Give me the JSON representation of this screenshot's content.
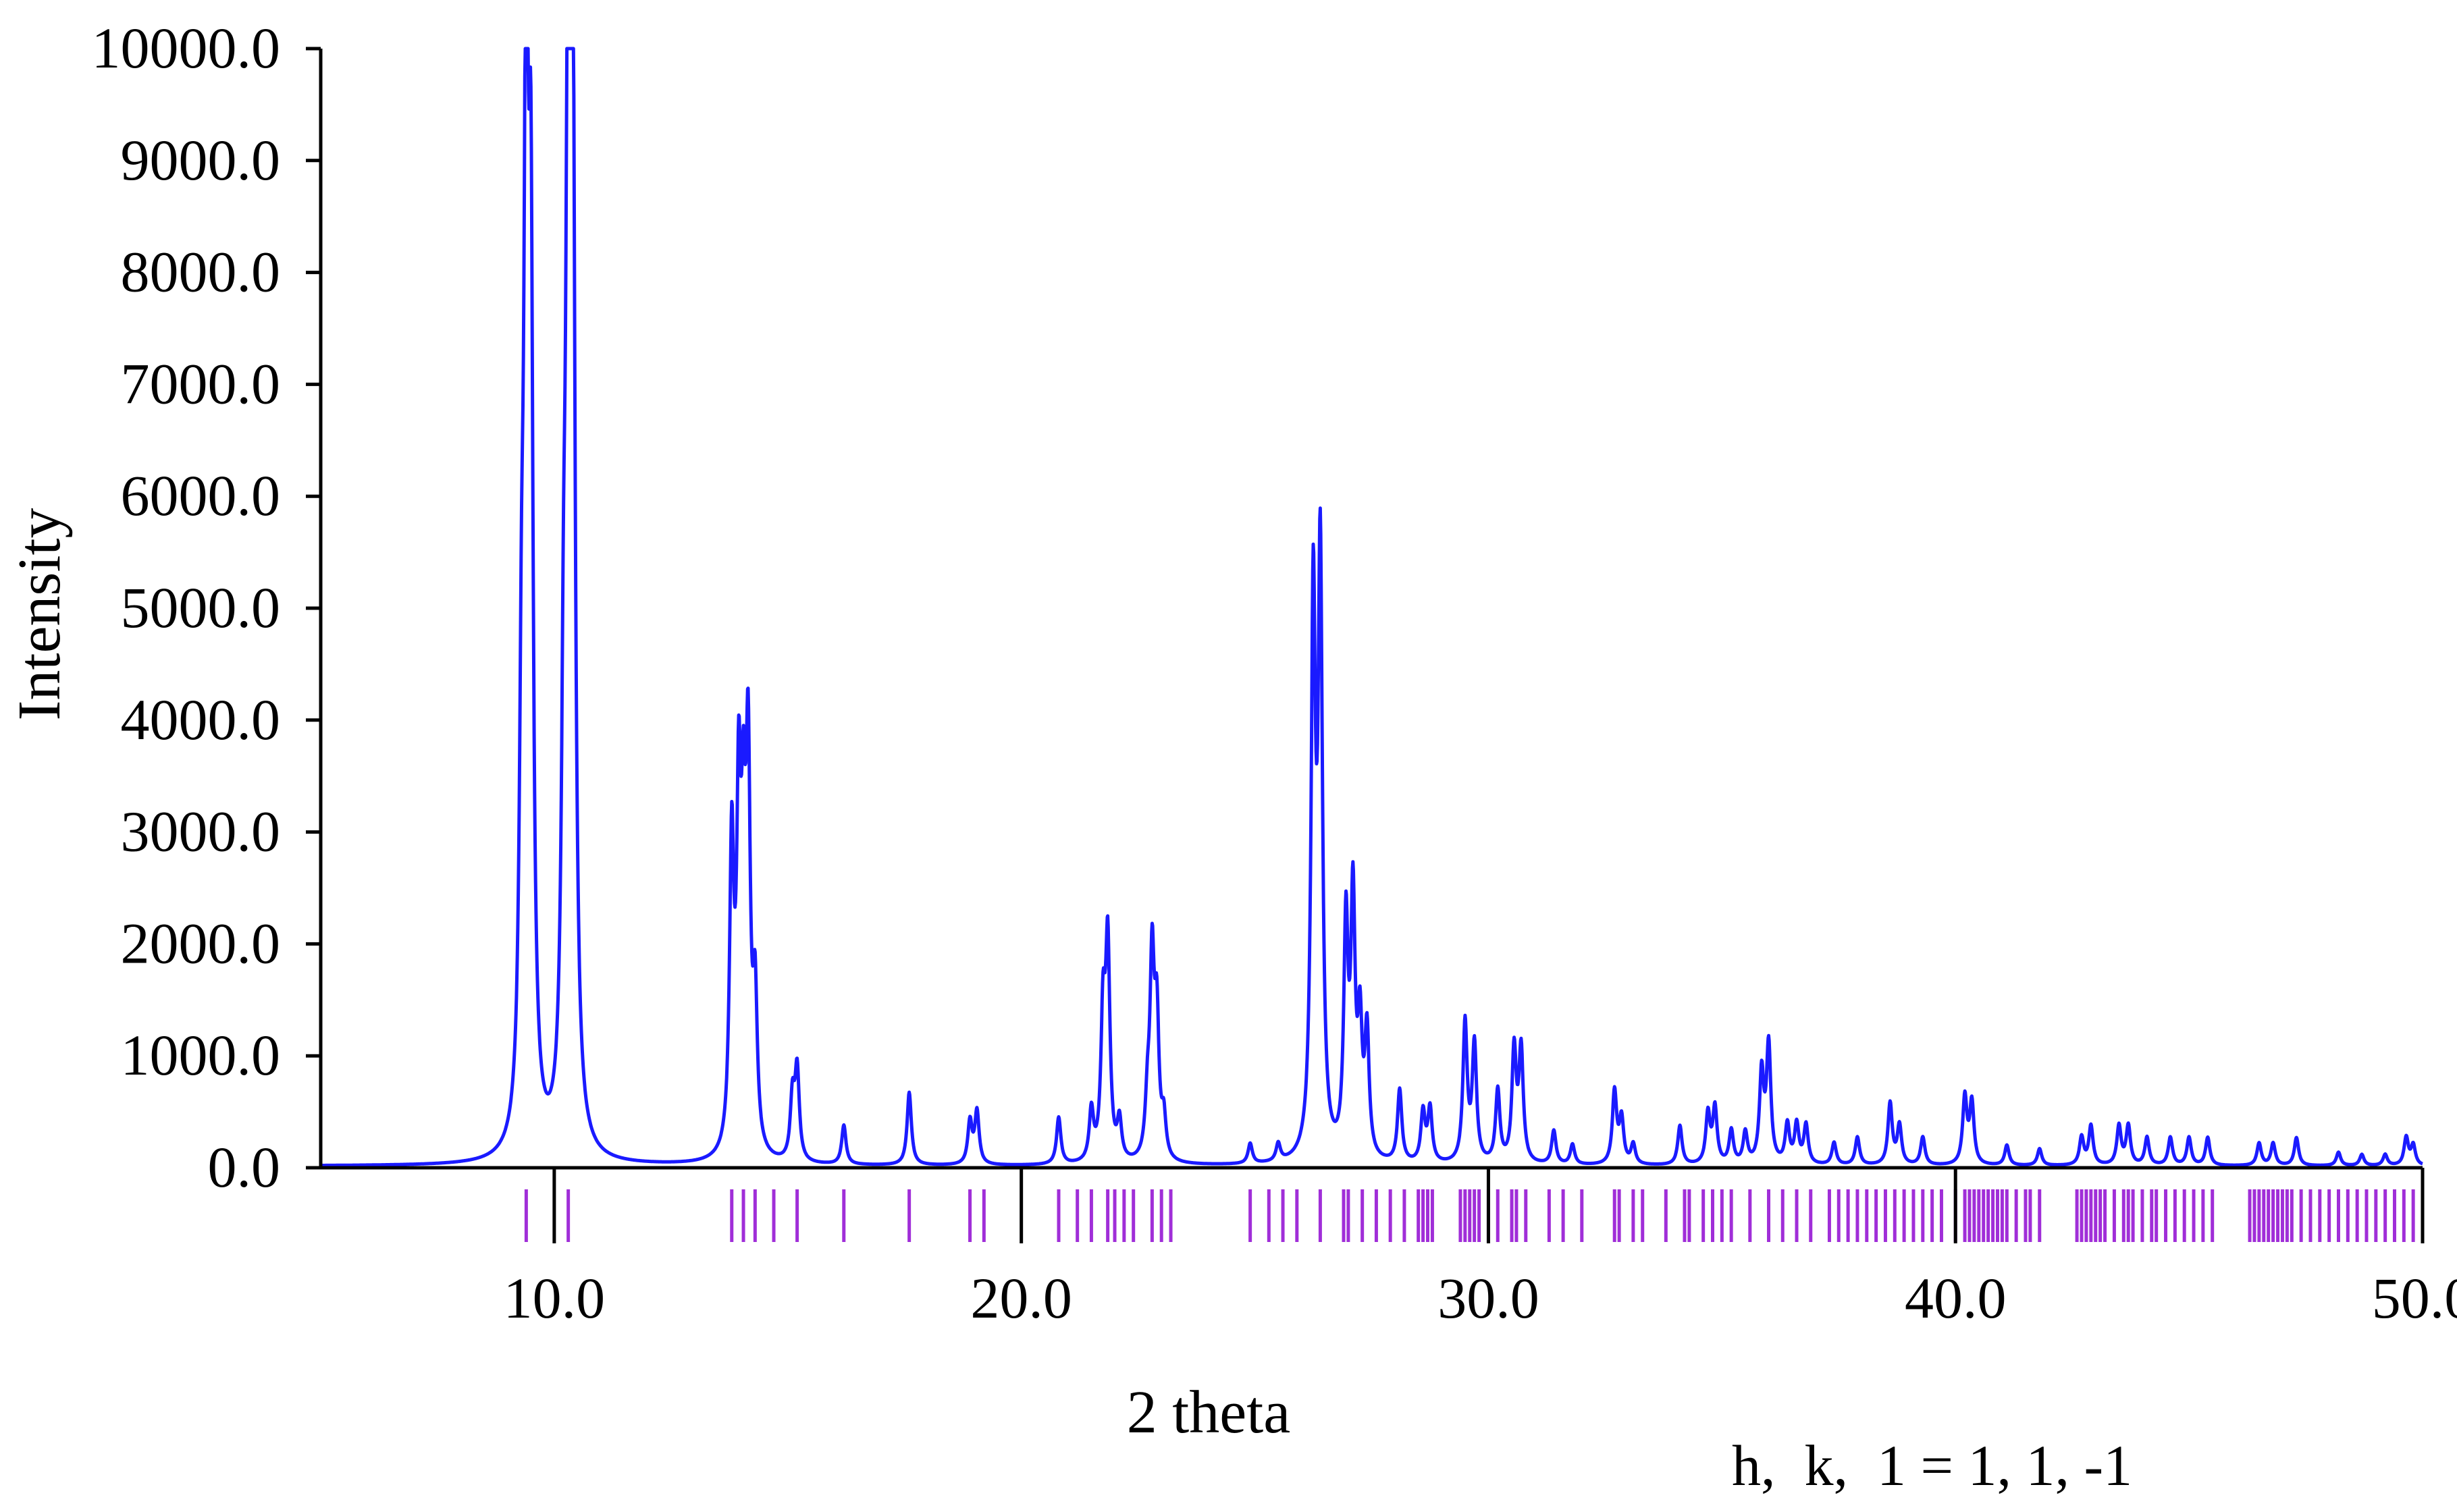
{
  "chart_data": {
    "type": "line",
    "title": "",
    "xlabel": "2 theta",
    "ylabel": "Intensity",
    "xlim": [
      5.0,
      50.0
    ],
    "ylim": [
      0,
      10000
    ],
    "x_ticks": [
      10.0,
      20.0,
      30.0,
      40.0,
      50.0
    ],
    "x_tick_labels": [
      "10.0",
      "20.0",
      "30.0",
      "40.0",
      "50.0"
    ],
    "y_ticks": [
      0,
      1000,
      2000,
      3000,
      4000,
      5000,
      6000,
      7000,
      8000,
      9000,
      10000
    ],
    "y_tick_labels": [
      "0.0",
      "1000.0",
      "2000.0",
      "3000.0",
      "4000.0",
      "5000.0",
      "6000.0",
      "7000.0",
      "8000.0",
      "9000.0",
      "10000.0"
    ],
    "grid": false,
    "annotation": "h,  k,  1 = 1, 1, -1",
    "colors": {
      "pattern": "#1a1aff",
      "reflection_markers": "#a02ed8",
      "axes": "#000000"
    },
    "series": [
      {
        "peaks": [
          {
            "x": 9.3,
            "y": 3100
          },
          {
            "x": 9.4,
            "y": 9600
          },
          {
            "x": 9.5,
            "y": 7100
          },
          {
            "x": 10.2,
            "y": 2900
          },
          {
            "x": 10.3,
            "y": 10000
          },
          {
            "x": 10.4,
            "y": 8600
          },
          {
            "x": 13.8,
            "y": 2700
          },
          {
            "x": 13.95,
            "y": 2900
          },
          {
            "x": 14.05,
            "y": 2300
          },
          {
            "x": 14.15,
            "y": 3300
          },
          {
            "x": 14.3,
            "y": 1300
          },
          {
            "x": 15.1,
            "y": 550
          },
          {
            "x": 15.2,
            "y": 800
          },
          {
            "x": 16.2,
            "y": 350
          },
          {
            "x": 17.6,
            "y": 650
          },
          {
            "x": 18.9,
            "y": 380
          },
          {
            "x": 19.05,
            "y": 470
          },
          {
            "x": 20.8,
            "y": 420
          },
          {
            "x": 21.5,
            "y": 450
          },
          {
            "x": 21.75,
            "y": 1250
          },
          {
            "x": 21.85,
            "y": 1900
          },
          {
            "x": 22.1,
            "y": 350
          },
          {
            "x": 22.7,
            "y": 450
          },
          {
            "x": 22.8,
            "y": 1750
          },
          {
            "x": 22.9,
            "y": 1200
          },
          {
            "x": 23.05,
            "y": 350
          },
          {
            "x": 24.9,
            "y": 180
          },
          {
            "x": 25.5,
            "y": 160
          },
          {
            "x": 26.25,
            "y": 4900
          },
          {
            "x": 26.4,
            "y": 5250
          },
          {
            "x": 26.95,
            "y": 2050
          },
          {
            "x": 27.1,
            "y": 2250
          },
          {
            "x": 27.25,
            "y": 1100
          },
          {
            "x": 27.4,
            "y": 1100
          },
          {
            "x": 28.1,
            "y": 650
          },
          {
            "x": 28.6,
            "y": 450
          },
          {
            "x": 28.75,
            "y": 480
          },
          {
            "x": 29.5,
            "y": 1250
          },
          {
            "x": 29.7,
            "y": 1050
          },
          {
            "x": 30.2,
            "y": 650
          },
          {
            "x": 30.55,
            "y": 1000
          },
          {
            "x": 30.7,
            "y": 1000
          },
          {
            "x": 31.4,
            "y": 300
          },
          {
            "x": 31.8,
            "y": 180
          },
          {
            "x": 32.7,
            "y": 650
          },
          {
            "x": 32.85,
            "y": 400
          },
          {
            "x": 33.1,
            "y": 180
          },
          {
            "x": 34.1,
            "y": 350
          },
          {
            "x": 34.7,
            "y": 450
          },
          {
            "x": 34.85,
            "y": 500
          },
          {
            "x": 35.2,
            "y": 300
          },
          {
            "x": 35.5,
            "y": 280
          },
          {
            "x": 35.85,
            "y": 800
          },
          {
            "x": 36.0,
            "y": 1050
          },
          {
            "x": 36.4,
            "y": 350
          },
          {
            "x": 36.6,
            "y": 350
          },
          {
            "x": 36.8,
            "y": 350
          },
          {
            "x": 37.4,
            "y": 200
          },
          {
            "x": 37.9,
            "y": 250
          },
          {
            "x": 38.6,
            "y": 550
          },
          {
            "x": 38.8,
            "y": 350
          },
          {
            "x": 39.3,
            "y": 250
          },
          {
            "x": 40.2,
            "y": 600
          },
          {
            "x": 40.35,
            "y": 550
          },
          {
            "x": 41.1,
            "y": 180
          },
          {
            "x": 41.8,
            "y": 150
          },
          {
            "x": 42.7,
            "y": 250
          },
          {
            "x": 42.9,
            "y": 350
          },
          {
            "x": 43.5,
            "y": 350
          },
          {
            "x": 43.7,
            "y": 350
          },
          {
            "x": 44.1,
            "y": 250
          },
          {
            "x": 44.6,
            "y": 250
          },
          {
            "x": 45.0,
            "y": 250
          },
          {
            "x": 45.4,
            "y": 250
          },
          {
            "x": 46.5,
            "y": 200
          },
          {
            "x": 46.8,
            "y": 200
          },
          {
            "x": 47.3,
            "y": 250
          },
          {
            "x": 48.2,
            "y": 120
          },
          {
            "x": 48.7,
            "y": 100
          },
          {
            "x": 49.2,
            "y": 100
          },
          {
            "x": 49.65,
            "y": 250
          },
          {
            "x": 49.8,
            "y": 180
          }
        ]
      }
    ],
    "reflection_positions": [
      9.4,
      10.3,
      13.8,
      14.05,
      14.3,
      14.7,
      15.2,
      16.2,
      17.6,
      18.9,
      19.2,
      20.8,
      21.2,
      21.5,
      21.85,
      22.0,
      22.2,
      22.4,
      22.8,
      23.0,
      23.2,
      24.9,
      25.3,
      25.6,
      25.9,
      26.4,
      26.9,
      27.0,
      27.3,
      27.6,
      27.9,
      28.2,
      28.5,
      28.6,
      28.7,
      28.8,
      29.4,
      29.5,
      29.6,
      29.7,
      29.8,
      30.0,
      30.2,
      30.5,
      30.6,
      30.8,
      31.3,
      31.6,
      32.0,
      32.7,
      32.8,
      33.1,
      33.3,
      33.8,
      34.2,
      34.3,
      34.6,
      34.8,
      35.0,
      35.2,
      35.6,
      36.0,
      36.3,
      36.6,
      36.9,
      37.3,
      37.5,
      37.7,
      37.9,
      38.1,
      38.3,
      38.5,
      38.7,
      38.9,
      39.1,
      39.3,
      39.5,
      39.7,
      40.0,
      40.2,
      40.3,
      40.4,
      40.5,
      40.6,
      40.7,
      40.8,
      40.9,
      41.0,
      41.1,
      41.3,
      41.5,
      41.6,
      41.8,
      42.6,
      42.7,
      42.8,
      42.9,
      43.0,
      43.1,
      43.2,
      43.4,
      43.6,
      43.7,
      43.8,
      44.0,
      44.2,
      44.3,
      44.5,
      44.7,
      44.9,
      45.1,
      45.3,
      45.5,
      46.3,
      46.4,
      46.5,
      46.6,
      46.7,
      46.8,
      46.9,
      47.0,
      47.1,
      47.2,
      47.4,
      47.6,
      47.8,
      48.0,
      48.2,
      48.4,
      48.6,
      48.8,
      49.0,
      49.2,
      49.4,
      49.6,
      49.8
    ]
  }
}
